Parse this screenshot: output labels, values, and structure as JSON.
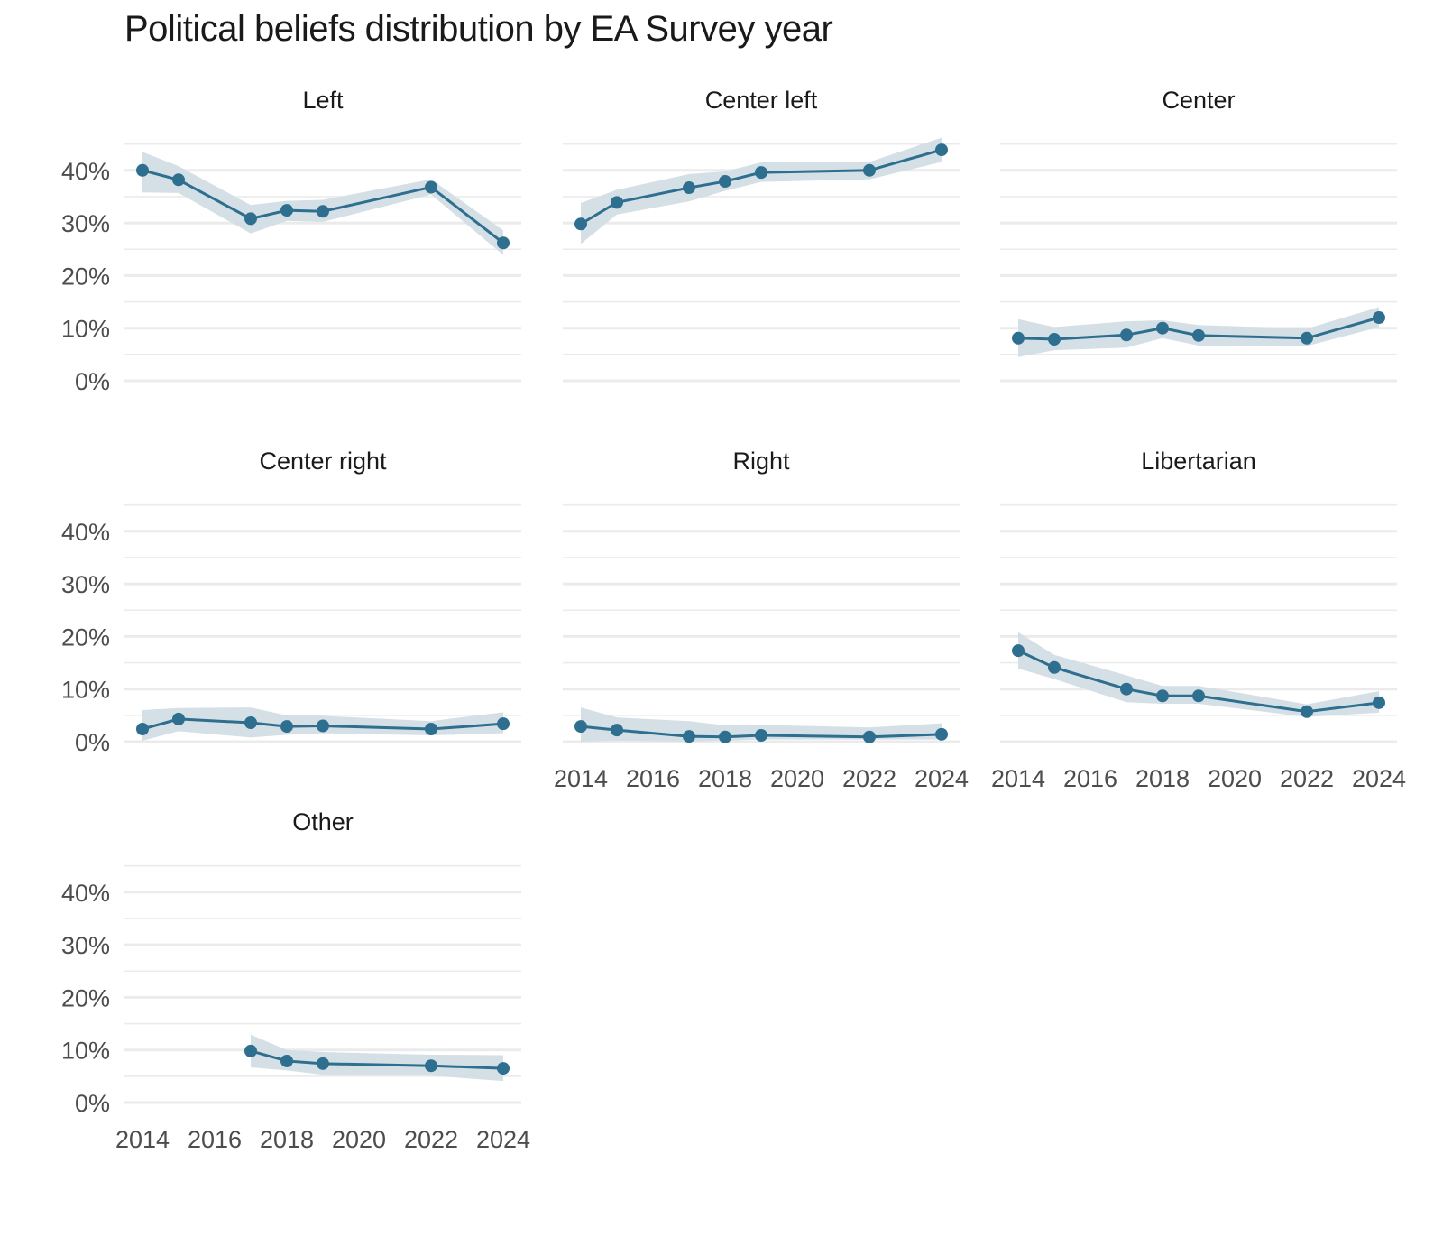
{
  "chart_data": {
    "type": "line",
    "title": "Political beliefs distribution by EA Survey year",
    "xlabel": "",
    "ylabel": "",
    "ylim": [
      0,
      45
    ],
    "xlim": [
      2014,
      2024
    ],
    "yticks": [
      0,
      10,
      20,
      30,
      40
    ],
    "ytick_labels": [
      "0%",
      "10%",
      "20%",
      "30%",
      "40%"
    ],
    "xticks": [
      2014,
      2016,
      2018,
      2020,
      2022,
      2024
    ],
    "xtick_labels": [
      "2014",
      "2016",
      "2018",
      "2020",
      "2022",
      "2024"
    ],
    "grid": true,
    "legend": "none",
    "line_color": "#2e6e8e",
    "band_color": "#d2dee5",
    "facets": [
      {
        "name": "Left",
        "x": [
          2014,
          2015,
          2017,
          2018,
          2019,
          2022,
          2024
        ],
        "values": [
          40.0,
          38.2,
          30.8,
          32.4,
          32.2,
          36.8,
          26.2
        ],
        "lower": [
          35.8,
          35.7,
          28.0,
          30.4,
          30.2,
          35.4,
          23.9
        ],
        "upper": [
          43.5,
          40.8,
          33.4,
          34.2,
          34.4,
          38.3,
          28.6
        ]
      },
      {
        "name": "Center left",
        "x": [
          2014,
          2015,
          2017,
          2018,
          2019,
          2022,
          2024
        ],
        "values": [
          29.8,
          33.9,
          36.7,
          37.9,
          39.6,
          40.0,
          43.9
        ],
        "lower": [
          26.0,
          31.6,
          34.1,
          36.1,
          37.8,
          38.3,
          41.6
        ],
        "upper": [
          33.8,
          36.3,
          39.3,
          39.8,
          41.5,
          41.6,
          46.2
        ]
      },
      {
        "name": "Center",
        "x": [
          2014,
          2015,
          2017,
          2018,
          2019,
          2022,
          2024
        ],
        "values": [
          8.1,
          7.9,
          8.7,
          10.0,
          8.6,
          8.1,
          12.0
        ],
        "lower": [
          4.5,
          5.8,
          6.3,
          8.1,
          6.7,
          6.6,
          10.2
        ],
        "upper": [
          11.7,
          10.2,
          11.3,
          11.5,
          10.6,
          9.9,
          14.0
        ]
      },
      {
        "name": "Center right",
        "x": [
          2014,
          2015,
          2017,
          2018,
          2019,
          2022,
          2024
        ],
        "values": [
          2.4,
          4.3,
          3.6,
          2.9,
          3.0,
          2.4,
          3.4
        ],
        "lower": [
          0.2,
          2.0,
          0.8,
          1.3,
          1.6,
          1.2,
          1.6
        ],
        "upper": [
          6.0,
          6.4,
          6.5,
          5.0,
          4.9,
          3.9,
          5.6
        ]
      },
      {
        "name": "Right",
        "x": [
          2014,
          2015,
          2017,
          2018,
          2019,
          2022,
          2024
        ],
        "values": [
          2.9,
          2.2,
          1.0,
          0.9,
          1.2,
          0.9,
          1.4
        ],
        "lower": [
          0.0,
          0.2,
          0.0,
          0.2,
          0.4,
          0.4,
          0.4
        ],
        "upper": [
          6.5,
          4.6,
          3.9,
          3.1,
          3.2,
          2.7,
          3.5
        ]
      },
      {
        "name": "Libertarian",
        "x": [
          2014,
          2015,
          2017,
          2018,
          2019,
          2022,
          2024
        ],
        "values": [
          17.3,
          14.1,
          10.0,
          8.7,
          8.7,
          5.7,
          7.4
        ],
        "lower": [
          13.9,
          11.9,
          7.5,
          7.2,
          7.2,
          4.7,
          5.5
        ],
        "upper": [
          20.8,
          16.5,
          12.6,
          10.6,
          10.6,
          7.1,
          9.6
        ]
      },
      {
        "name": "Other",
        "x": [
          2017,
          2018,
          2019,
          2022,
          2024
        ],
        "values": [
          9.8,
          7.9,
          7.4,
          7.0,
          6.5
        ],
        "lower": [
          6.7,
          6.1,
          5.3,
          5.1,
          4.1
        ],
        "upper": [
          12.9,
          10.0,
          9.6,
          9.1,
          9.0
        ]
      }
    ]
  }
}
